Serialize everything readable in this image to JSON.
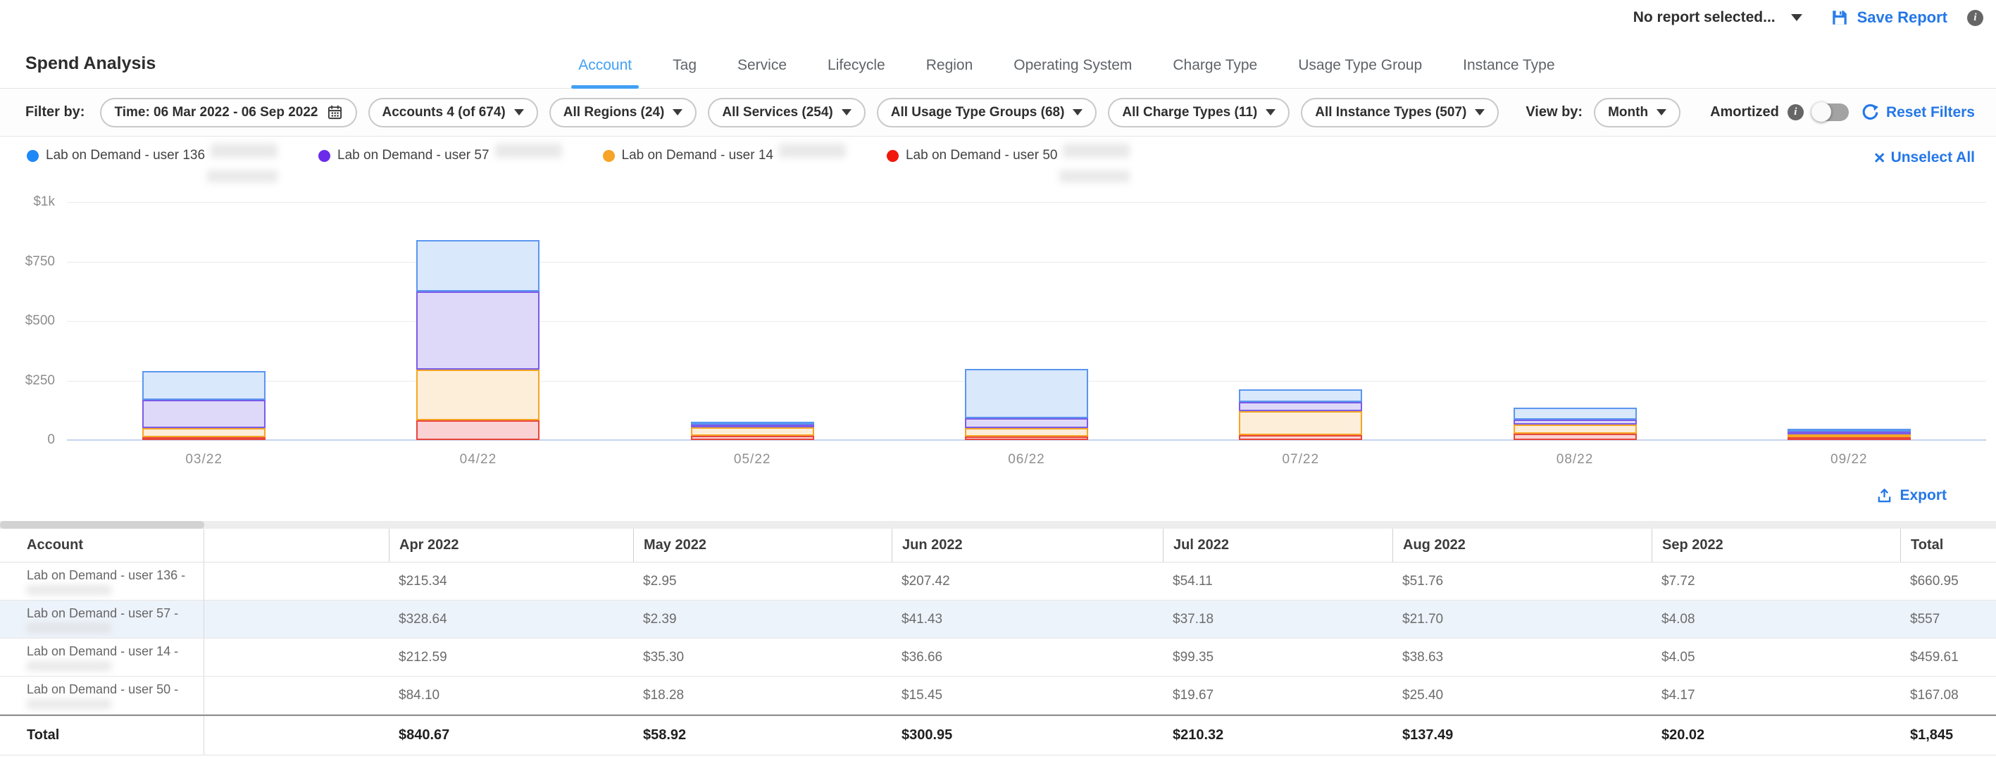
{
  "header": {
    "report_selector": "No report selected...",
    "save_report": "Save Report",
    "page_title": "Spend Analysis"
  },
  "tabs": [
    {
      "label": "Account",
      "active": true
    },
    {
      "label": "Tag",
      "active": false
    },
    {
      "label": "Service",
      "active": false
    },
    {
      "label": "Lifecycle",
      "active": false
    },
    {
      "label": "Region",
      "active": false
    },
    {
      "label": "Operating System",
      "active": false
    },
    {
      "label": "Charge Type",
      "active": false
    },
    {
      "label": "Usage Type Group",
      "active": false
    },
    {
      "label": "Instance Type",
      "active": false
    }
  ],
  "filter_bar": {
    "label": "Filter by:",
    "time_filter": "Time: 06 Mar 2022 - 06 Sep 2022",
    "dropdowns": [
      "Accounts 4 (of 674)",
      "All Regions (24)",
      "All Services (254)",
      "All Usage Type Groups (68)",
      "All Charge Types (11)",
      "All Instance Types (507)"
    ],
    "view_by_label": "View by:",
    "view_by_value": "Month",
    "amortized_label": "Amortized",
    "reset_label": "Reset Filters"
  },
  "legend": {
    "unselect_all": "Unselect All",
    "items": [
      {
        "label": "Lab on Demand - user 136",
        "color": "#1e88f7",
        "second_line_redacted": true
      },
      {
        "label": "Lab on Demand - user 57",
        "color": "#6a2ce8",
        "second_line_redacted": false
      },
      {
        "label": "Lab on Demand - user 14",
        "color": "#f7a325",
        "second_line_redacted": false
      },
      {
        "label": "Lab on Demand - user 50",
        "color": "#f2170d",
        "second_line_redacted": true
      }
    ]
  },
  "chart_data": {
    "type": "bar",
    "stacked": true,
    "categories": [
      "03/22",
      "04/22",
      "05/22",
      "06/22",
      "07/22",
      "08/22",
      "09/22"
    ],
    "series": [
      {
        "name": "Lab on Demand - user 136",
        "line_color": "#5a96f0",
        "fill_color": "#d9e8fb",
        "values": [
          120,
          215.34,
          2.95,
          207.42,
          54.11,
          51.76,
          7.72
        ]
      },
      {
        "name": "Lab on Demand - user 57",
        "line_color": "#7a5ce8",
        "fill_color": "#ded8f9",
        "values": [
          118,
          328.64,
          2.39,
          41.43,
          37.18,
          21.7,
          4.08
        ]
      },
      {
        "name": "Lab on Demand - user 14",
        "line_color": "#f5a623",
        "fill_color": "#fdeeda",
        "values": [
          38,
          212.59,
          35.3,
          36.66,
          99.35,
          38.63,
          4.05
        ]
      },
      {
        "name": "Lab on Demand - user 50",
        "line_color": "#e8453c",
        "fill_color": "#fad2d4",
        "values": [
          3,
          84.1,
          18.28,
          15.45,
          19.67,
          25.4,
          4.17
        ]
      }
    ],
    "stack_order_bottom_to_top": [
      "Lab on Demand - user 50",
      "Lab on Demand - user 14",
      "Lab on Demand - user 57",
      "Lab on Demand - user 136"
    ],
    "ylabel_ticks": [
      "$1k",
      "$750",
      "$500",
      "$250",
      "0"
    ],
    "ylim": [
      0,
      1000
    ],
    "grid": true,
    "legend_position": "top"
  },
  "table": {
    "export_label": "Export",
    "account_header": "Account",
    "columns": [
      "Apr 2022",
      "May 2022",
      "Jun 2022",
      "Jul 2022",
      "Aug 2022",
      "Sep 2022",
      "Total"
    ],
    "rows": [
      {
        "account": "Lab on Demand - user 136 -",
        "redacted": true,
        "highlighted": false,
        "values": [
          "$215.34",
          "$2.95",
          "$207.42",
          "$54.11",
          "$51.76",
          "$7.72",
          "$660.95"
        ]
      },
      {
        "account": "Lab on Demand - user 57 -",
        "redacted": true,
        "highlighted": true,
        "values": [
          "$328.64",
          "$2.39",
          "$41.43",
          "$37.18",
          "$21.70",
          "$4.08",
          "$557"
        ]
      },
      {
        "account": "Lab on Demand - user 14 -",
        "redacted": true,
        "highlighted": false,
        "values": [
          "$212.59",
          "$35.30",
          "$36.66",
          "$99.35",
          "$38.63",
          "$4.05",
          "$459.61"
        ]
      },
      {
        "account": "Lab on Demand - user 50 -",
        "redacted": true,
        "highlighted": false,
        "values": [
          "$84.10",
          "$18.28",
          "$15.45",
          "$19.67",
          "$25.40",
          "$4.17",
          "$167.08"
        ]
      }
    ],
    "total_row": {
      "label": "Total",
      "values": [
        "$840.67",
        "$58.92",
        "$300.95",
        "$210.32",
        "$137.49",
        "$20.02",
        "$1,845"
      ]
    }
  },
  "colors": {
    "accent_blue": "#2477e8",
    "active_tab_blue": "#42a0f4",
    "highlight_row": "#edf3fb"
  }
}
